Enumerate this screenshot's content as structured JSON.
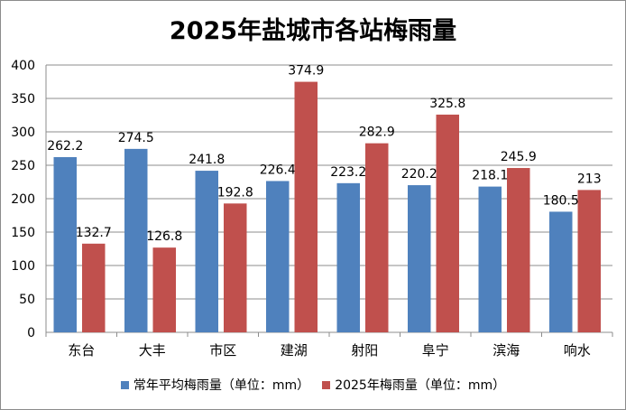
{
  "chart_data": {
    "type": "bar",
    "title": "2025年盐城市各站梅雨量",
    "categories": [
      "东台",
      "大丰",
      "市区",
      "建湖",
      "射阳",
      "阜宁",
      "滨海",
      "响水"
    ],
    "series": [
      {
        "name": "常年平均梅雨量（单位：mm）",
        "color": "#4f81bd",
        "values": [
          262.2,
          274.5,
          241.8,
          226.4,
          223.2,
          220.2,
          218.1,
          180.5
        ],
        "labels": [
          "262.2",
          "274.5",
          "241.8",
          "226.4",
          "223.2",
          "220.2",
          "218.1",
          "180.5"
        ]
      },
      {
        "name": "2025年梅雨量（单位：mm）",
        "color": "#c0504d",
        "values": [
          132.7,
          126.8,
          192.8,
          374.9,
          282.9,
          325.8,
          245.9,
          213
        ],
        "labels": [
          "132.7",
          "126.8",
          "192.8",
          "374.9",
          "282.9",
          "325.8",
          "245.9",
          "213"
        ]
      }
    ],
    "ylim": [
      0,
      400
    ],
    "yticks": [
      "0",
      "50",
      "100",
      "150",
      "200",
      "250",
      "300",
      "350",
      "400"
    ],
    "grid": true,
    "legend_position": "bottom"
  }
}
